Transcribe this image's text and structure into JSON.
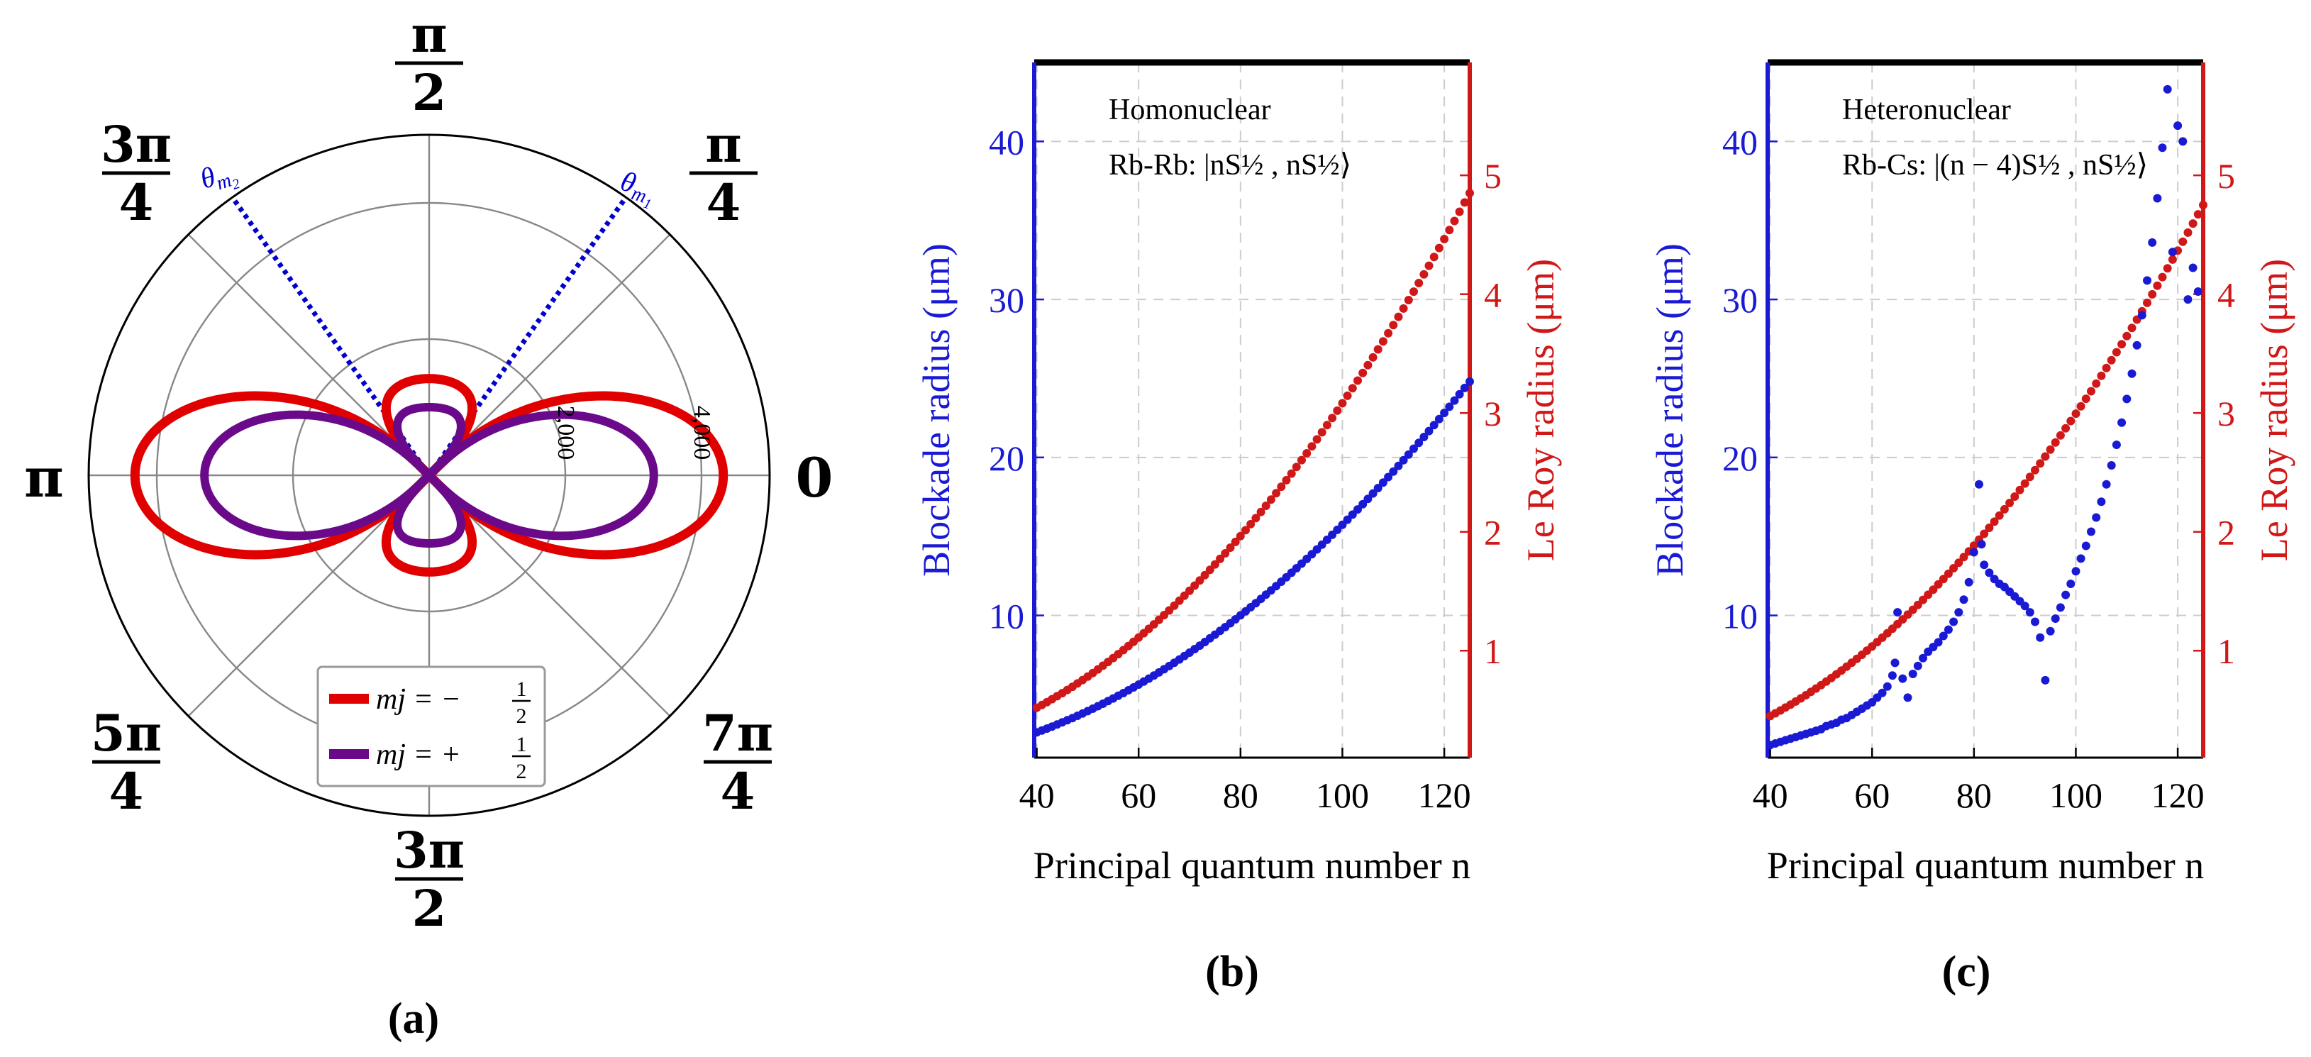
{
  "chart_data": [
    {
      "type": "polar",
      "panel_label": "(a)",
      "angle_labels": [
        {
          "num": "",
          "den": "",
          "single": "0",
          "angle_deg": 0
        },
        {
          "num": "π",
          "den": "4",
          "single": "",
          "angle_deg": 45
        },
        {
          "num": "π",
          "den": "2",
          "single": "",
          "angle_deg": 90
        },
        {
          "num": "3π",
          "den": "4",
          "single": "",
          "angle_deg": 135
        },
        {
          "num": "",
          "den": "",
          "single": "π",
          "angle_deg": 180
        },
        {
          "num": "5π",
          "den": "4",
          "single": "",
          "angle_deg": 225
        },
        {
          "num": "3π",
          "den": "2",
          "single": "",
          "angle_deg": 270
        },
        {
          "num": "7π",
          "den": "4",
          "single": "",
          "angle_deg": 315
        }
      ],
      "radial_ticks": [
        "2,000",
        "4,000"
      ],
      "r_max": 5000,
      "lines": [
        {
          "name": "θm1",
          "label_main": "θ",
          "label_sub": "m",
          "label_subsub": "1",
          "angle_deg": 54.7,
          "color": "#0000cc"
        },
        {
          "name": "θm2",
          "label_main": "θ",
          "label_sub": "m",
          "label_subsub": "2",
          "angle_deg": 125.3,
          "color": "#0000cc"
        }
      ],
      "series": [
        {
          "name": "m_j = -1/2",
          "legend_lhs": "mj = −",
          "legend_num": "1",
          "legend_den": "2",
          "color": "#e00000",
          "a": 4.3,
          "b": 1.4,
          "c": 0.02,
          "scale": 1000
        },
        {
          "name": "m_j = +1/2",
          "legend_lhs": "mj = +",
          "legend_num": "1",
          "legend_den": "2",
          "color": "#6a0a8a",
          "a": 3.3,
          "b": 1.0,
          "c": 0.0,
          "scale": 1000
        }
      ]
    },
    {
      "type": "scatter",
      "panel_label": "(b)",
      "title_lines": [
        "Homonuclear",
        "Rb-Rb: |nS½ , nS½⟩"
      ],
      "xlabel": "Principal quantum number n",
      "ylabel_left": "Blockade radius (μm)",
      "ylabel_right": "Le Roy radius (μm)",
      "xlim": [
        39.5,
        125
      ],
      "ylim_left": [
        1,
        45
      ],
      "ylim_right": [
        0.1,
        5.95
      ],
      "xticks": [
        40,
        60,
        80,
        100,
        120
      ],
      "yticks_left": [
        10,
        20,
        30,
        40
      ],
      "yticks_right": [
        1,
        2,
        3,
        4,
        5
      ],
      "series": [
        {
          "name": "Blockade radius",
          "axis": "left",
          "color": "#1a1ad4",
          "x_start": 40,
          "x_end": 125,
          "model": "power",
          "params": {
            "y0": 2.6,
            "y1": 24.8,
            "p": 2.0
          }
        },
        {
          "name": "Le Roy radius",
          "axis": "right",
          "color": "#d01818",
          "x_start": 40,
          "x_end": 125,
          "model": "power",
          "params": {
            "y0": 0.52,
            "y1": 4.85,
            "p": 2.0
          }
        }
      ]
    },
    {
      "type": "scatter",
      "panel_label": "(c)",
      "title_lines": [
        "Heteronuclear",
        "Rb-Cs: |(n − 4)S½ , nS½⟩"
      ],
      "xlabel": "Principal quantum number n",
      "ylabel_left": "Blockade radius (μm)",
      "ylabel_right": "Le Roy radius (μm)",
      "xlim": [
        39.5,
        125
      ],
      "ylim_left": [
        1,
        45
      ],
      "ylim_right": [
        0.1,
        5.95
      ],
      "xticks": [
        40,
        60,
        80,
        100,
        120
      ],
      "yticks_left": [
        10,
        20,
        30,
        40
      ],
      "yticks_right": [
        1,
        2,
        3,
        4,
        5
      ],
      "series": [
        {
          "name": "Le Roy radius",
          "axis": "right",
          "color": "#d01818",
          "x_start": 40,
          "x_end": 125,
          "model": "power",
          "params": {
            "y0": 0.45,
            "y1": 4.75,
            "p": 2.0
          }
        },
        {
          "name": "Blockade radius",
          "axis": "left",
          "color": "#1a1ad4",
          "model": "points",
          "points": [
            [
              40,
              1.8
            ],
            [
              41,
              1.9
            ],
            [
              42,
              2.0
            ],
            [
              43,
              2.1
            ],
            [
              44,
              2.2
            ],
            [
              45,
              2.3
            ],
            [
              46,
              2.4
            ],
            [
              47,
              2.5
            ],
            [
              48,
              2.6
            ],
            [
              49,
              2.7
            ],
            [
              50,
              2.8
            ],
            [
              51,
              3.0
            ],
            [
              52,
              3.1
            ],
            [
              53,
              3.2
            ],
            [
              54,
              3.4
            ],
            [
              55,
              3.5
            ],
            [
              56,
              3.7
            ],
            [
              57,
              3.9
            ],
            [
              58,
              4.1
            ],
            [
              59,
              4.3
            ],
            [
              60,
              4.5
            ],
            [
              61,
              4.8
            ],
            [
              62,
              5.1
            ],
            [
              63,
              5.5
            ],
            [
              64,
              6.2
            ],
            [
              64.5,
              7.0
            ],
            [
              65,
              10.2
            ],
            [
              66,
              6.0
            ],
            [
              67,
              4.8
            ],
            [
              68,
              6.3
            ],
            [
              69,
              6.8
            ],
            [
              70,
              7.3
            ],
            [
              71,
              7.7
            ],
            [
              72,
              8.0
            ],
            [
              73,
              8.3
            ],
            [
              74,
              8.7
            ],
            [
              75,
              9.1
            ],
            [
              76,
              9.6
            ],
            [
              77,
              10.2
            ],
            [
              78,
              11.0
            ],
            [
              79,
              12.1
            ],
            [
              80,
              14.0
            ],
            [
              81,
              18.3
            ],
            [
              81.5,
              14.5
            ],
            [
              82,
              13.2
            ],
            [
              83,
              12.7
            ],
            [
              84,
              12.3
            ],
            [
              85,
              12.0
            ],
            [
              86,
              11.8
            ],
            [
              87,
              11.5
            ],
            [
              88,
              11.2
            ],
            [
              89,
              10.9
            ],
            [
              90,
              10.6
            ],
            [
              91,
              10.2
            ],
            [
              92,
              9.6
            ],
            [
              93,
              8.6
            ],
            [
              94,
              5.9
            ],
            [
              95,
              9.0
            ],
            [
              96,
              9.8
            ],
            [
              97,
              10.5
            ],
            [
              98,
              11.3
            ],
            [
              99,
              12.0
            ],
            [
              100,
              12.8
            ],
            [
              101,
              13.6
            ],
            [
              102,
              14.4
            ],
            [
              103,
              15.3
            ],
            [
              104,
              16.2
            ],
            [
              105,
              17.2
            ],
            [
              106,
              18.3
            ],
            [
              107,
              19.5
            ],
            [
              108,
              20.8
            ],
            [
              109,
              22.2
            ],
            [
              110,
              23.7
            ],
            [
              111,
              25.3
            ],
            [
              112,
              27.1
            ],
            [
              113,
              29.0
            ],
            [
              114,
              31.2
            ],
            [
              115,
              33.6
            ],
            [
              116,
              36.4
            ],
            [
              117,
              39.6
            ],
            [
              118,
              43.3
            ],
            [
              119,
              33.0
            ],
            [
              120,
              41.0
            ],
            [
              121,
              40.0
            ],
            [
              122,
              30.0
            ],
            [
              123,
              32.0
            ],
            [
              124,
              30.5
            ]
          ]
        }
      ]
    }
  ]
}
